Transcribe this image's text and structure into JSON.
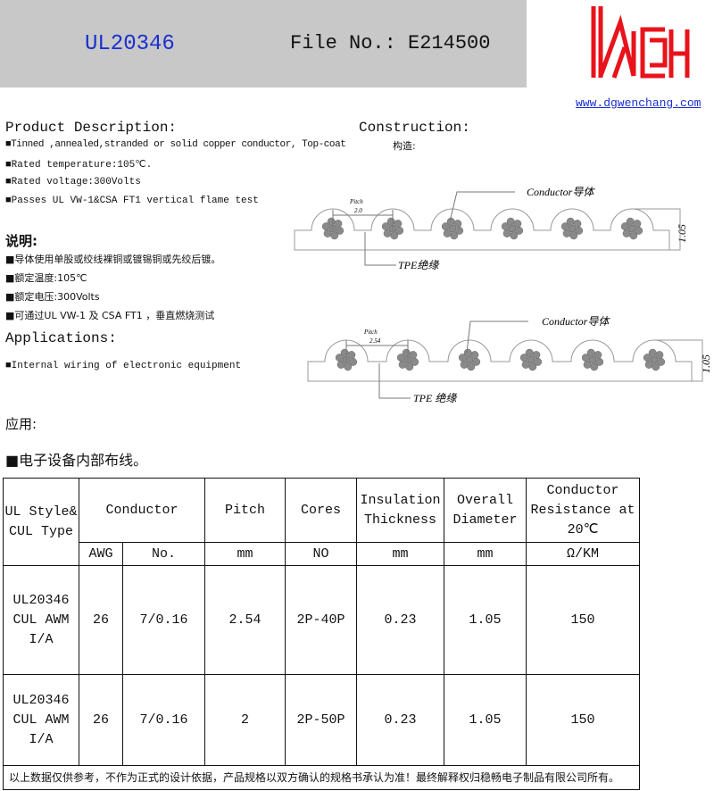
{
  "header": {
    "model": "UL20346",
    "file_no": "File No.: E214500",
    "website": "www.dgwenchang.com",
    "logo_text": "WCH",
    "logo_color": "#e8131b"
  },
  "description": {
    "title": "Product Description:",
    "items": [
      "■Tinned ,annealed,stranded or solid copper conductor, Top-coat",
      "■Rated temperature:105℃.",
      "■Rated voltage:300Volts",
      "■Passes UL VW-1&CSA FT1 vertical flame test"
    ]
  },
  "construction": {
    "title": "Construction:",
    "subtitle": "构造:"
  },
  "description_cn": {
    "title": "说明:",
    "items": [
      "■导体使用单股或绞线裸铜或镀锡铜或先绞后镀。",
      "■额定温度:105℃",
      "■额定电压:300Volts",
      "■可通过UL VW-1 及 CSA FT1 ，垂直燃烧测试"
    ]
  },
  "applications": {
    "title": "Applications:",
    "items": [
      "■Internal wiring of electronic equipment"
    ]
  },
  "applications_cn": {
    "title": "应用:",
    "items": [
      "■电子设备内部布线。"
    ]
  },
  "diagrams": [
    {
      "pitch_label": "Pitch",
      "pitch_value": "2.0",
      "conductor_label": "Conductor导体",
      "insulation_label": "TPE绝缘",
      "height_value": "1.05"
    },
    {
      "pitch_label": "Pitch",
      "pitch_value": "2.54",
      "conductor_label": "Conductor导体",
      "insulation_label": "TPE 绝缘",
      "height_value": "1.05"
    }
  ],
  "table": {
    "headers": {
      "style": "UL Style& CUL Type",
      "conductor": "Conductor",
      "pitch": "Pitch",
      "cores": "Cores",
      "insulation": "Insulation Thickness",
      "diameter": "Overall Diameter",
      "resistance": "Conductor Resistance at 20℃"
    },
    "units": {
      "awg": "AWG",
      "no": "No.",
      "pitch": "mm",
      "cores": "NO",
      "insulation": "mm",
      "diameter": "mm",
      "resistance": "Ω/KM"
    },
    "rows": [
      {
        "style": "UL20346 CUL AWM I/A",
        "awg": "26",
        "no": "7/0.16",
        "pitch": "2.54",
        "cores": "2P-40P",
        "insulation": "0.23",
        "diameter": "1.05",
        "resistance": "150"
      },
      {
        "style": "UL20346 CUL AWM I/A",
        "awg": "26",
        "no": "7/0.16",
        "pitch": "2",
        "cores": "2P-50P",
        "insulation": "0.23",
        "diameter": "1.05",
        "resistance": "150"
      }
    ],
    "footer": "以上数据仅供参考，不作为正式的设计依据，产品规格以双方确认的规格书承认为准！最终解释权归稳畅电子制品有限公司所有。"
  }
}
